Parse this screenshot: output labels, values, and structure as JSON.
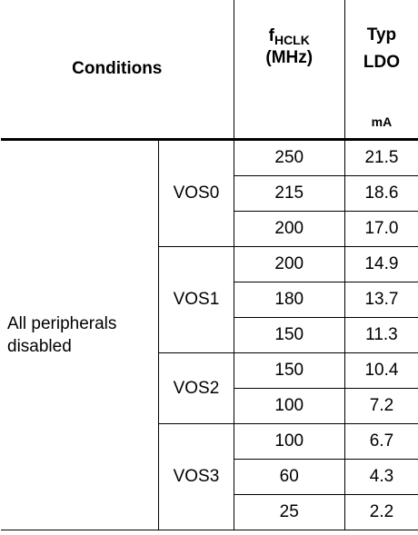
{
  "header": {
    "conditions": "Conditions",
    "freq_base": "f",
    "freq_sub": "HCLK",
    "freq_unit": "(MHz)",
    "typ_line1": "Typ",
    "typ_line2": "LDO",
    "typ_unit": "mA"
  },
  "condition_label": "All peripherals disabled",
  "groups": [
    {
      "vos": "VOS0",
      "rows": [
        {
          "freq": "250",
          "typ": "21.5"
        },
        {
          "freq": "215",
          "typ": "18.6"
        },
        {
          "freq": "200",
          "typ": "17.0"
        }
      ]
    },
    {
      "vos": "VOS1",
      "rows": [
        {
          "freq": "200",
          "typ": "14.9"
        },
        {
          "freq": "180",
          "typ": "13.7"
        },
        {
          "freq": "150",
          "typ": "11.3"
        }
      ]
    },
    {
      "vos": "VOS2",
      "rows": [
        {
          "freq": "150",
          "typ": "10.4"
        },
        {
          "freq": "100",
          "typ": "7.2"
        }
      ]
    },
    {
      "vos": "VOS3",
      "rows": [
        {
          "freq": "100",
          "typ": "6.7"
        },
        {
          "freq": "60",
          "typ": "4.3"
        },
        {
          "freq": "25",
          "typ": "2.2"
        }
      ]
    }
  ]
}
